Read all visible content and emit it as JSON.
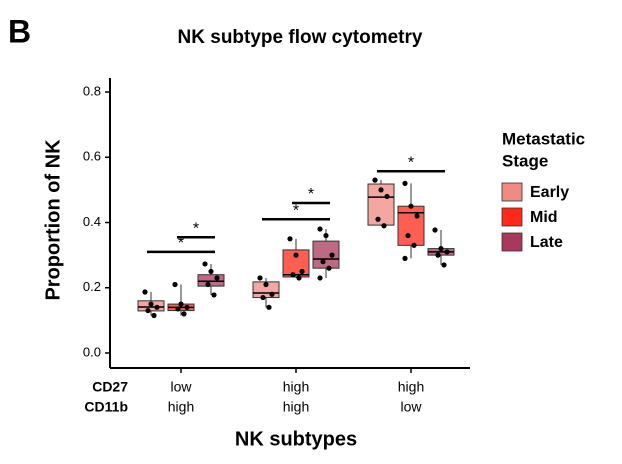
{
  "panel_label": "B",
  "chart_data": {
    "type": "box",
    "title": "NK subtype flow cytometry",
    "x_label": "NK subtypes",
    "y_label": "Proportion of NK",
    "row_labels": [
      "CD27",
      "CD11b"
    ],
    "categories": [
      [
        "low",
        "high"
      ],
      [
        "high",
        "high"
      ],
      [
        "high",
        "low"
      ]
    ],
    "ylim": [
      -0.046,
      0.843
    ],
    "yticks": [
      {
        "value": 0,
        "label": "0.0"
      },
      0.2,
      0.4,
      0.6,
      0.8
    ],
    "legend_title": [
      "Metastatic",
      "Stage"
    ],
    "legend_position": "right",
    "series": [
      {
        "name": "Early",
        "color": "#ef8a84",
        "boxes": [
          {
            "min": 0.115,
            "q1": 0.129,
            "median": 0.141,
            "q3": 0.16,
            "max": 0.187,
            "points": [
              0.187,
              0.15,
              0.14,
              0.13,
              0.115
            ]
          },
          {
            "min": 0.14,
            "q1": 0.17,
            "median": 0.184,
            "q3": 0.218,
            "max": 0.23,
            "points": [
              0.23,
              0.21,
              0.18,
              0.17,
              0.14
            ]
          },
          {
            "min": 0.39,
            "q1": 0.392,
            "median": 0.478,
            "q3": 0.518,
            "max": 0.53,
            "points": [
              0.53,
              0.5,
              0.48,
              0.41,
              0.39
            ]
          }
        ]
      },
      {
        "name": "Mid",
        "color": "#ff2a1a",
        "boxes": [
          {
            "min": 0.115,
            "q1": 0.13,
            "median": 0.14,
            "q3": 0.15,
            "max": 0.21,
            "points": [
              0.21,
              0.15,
              0.14,
              0.135,
              0.12
            ]
          },
          {
            "min": 0.23,
            "q1": 0.233,
            "median": 0.24,
            "q3": 0.316,
            "max": 0.35,
            "points": [
              0.35,
              0.3,
              0.25,
              0.24,
              0.23
            ]
          },
          {
            "min": 0.29,
            "q1": 0.33,
            "median": 0.43,
            "q3": 0.45,
            "max": 0.52,
            "points": [
              0.52,
              0.45,
              0.42,
              0.36,
              0.33,
              0.29
            ]
          }
        ]
      },
      {
        "name": "Late",
        "color": "#a8385c",
        "boxes": [
          {
            "min": 0.178,
            "q1": 0.205,
            "median": 0.22,
            "q3": 0.24,
            "max": 0.273,
            "points": [
              0.273,
              0.25,
              0.23,
              0.21,
              0.178
            ]
          },
          {
            "min": 0.23,
            "q1": 0.26,
            "median": 0.288,
            "q3": 0.343,
            "max": 0.38,
            "points": [
              0.38,
              0.36,
              0.3,
              0.28,
              0.26,
              0.23
            ]
          },
          {
            "min": 0.27,
            "q1": 0.3,
            "median": 0.31,
            "q3": 0.32,
            "max": 0.377,
            "points": [
              0.377,
              0.32,
              0.31,
              0.3,
              0.27
            ]
          }
        ]
      }
    ],
    "significance": [
      {
        "category": 0,
        "from": 0,
        "to": 2,
        "y": 0.31,
        "label": "*"
      },
      {
        "category": 0,
        "from": 1,
        "to": 2,
        "y": 0.355,
        "label": "*"
      },
      {
        "category": 1,
        "from": 0,
        "to": 2,
        "y": 0.41,
        "label": "*"
      },
      {
        "category": 1,
        "from": 1,
        "to": 2,
        "y": 0.46,
        "label": "*"
      },
      {
        "category": 2,
        "from": 0,
        "to": 2,
        "y": 0.557,
        "label": "*"
      }
    ]
  }
}
